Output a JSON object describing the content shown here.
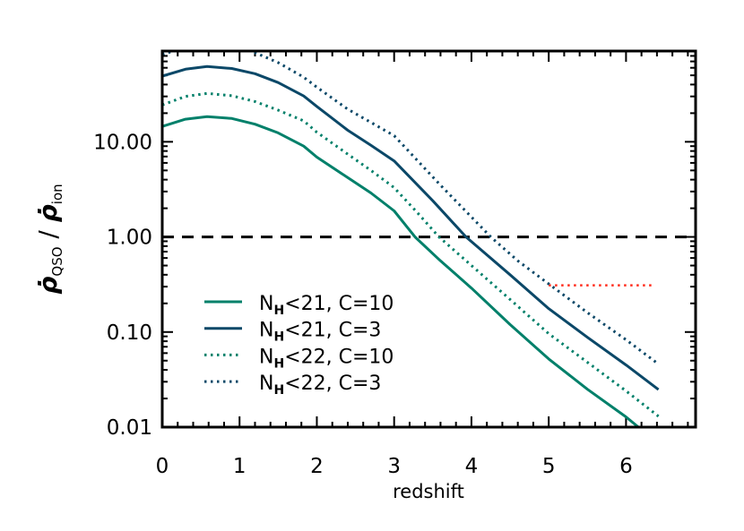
{
  "chart_data": {
    "type": "line",
    "title": "",
    "xlabel": "redshift",
    "ylabel": {
      "num": "ρ̇",
      "num_sub": "QSO",
      "sep": " / ",
      "den": "ρ̇",
      "den_sub": "ion"
    },
    "xlim": [
      0,
      6.9
    ],
    "ylim": [
      0.01,
      90
    ],
    "yscale": "log",
    "grid": false,
    "legend_position": "lower-left",
    "x_ticks": [
      0,
      1,
      2,
      3,
      4,
      5,
      6
    ],
    "x_tick_labels": [
      "0",
      "1",
      "2",
      "3",
      "4",
      "5",
      "6"
    ],
    "y_ticks": [
      0.01,
      0.1,
      1,
      10
    ],
    "y_tick_labels": [
      "0.01",
      "0.10",
      "1.00",
      "10.00"
    ],
    "series": [
      {
        "name": "N_H<21, C=10",
        "label_main": "N",
        "label_sub": "H",
        "label_rest": "<21, C=10",
        "color": "#00806a",
        "style": "solid",
        "x": [
          0,
          0.3,
          0.58,
          0.9,
          1.2,
          1.5,
          1.83,
          2.0,
          2.4,
          2.7,
          3.0,
          3.27,
          3.6,
          4.0,
          4.5,
          5.0,
          5.5,
          6.0,
          6.16
        ],
        "y": [
          14.5,
          17.3,
          18.4,
          17.6,
          15.3,
          12.4,
          9.0,
          6.9,
          4.2,
          2.9,
          1.88,
          1.0,
          0.56,
          0.29,
          0.12,
          0.052,
          0.025,
          0.0128,
          0.01
        ]
      },
      {
        "name": "N_H<21, C=3",
        "label_main": "N",
        "label_sub": "H",
        "label_rest": "<21, C=3",
        "color": "#0b4868",
        "style": "solid",
        "x": [
          0,
          0.3,
          0.58,
          0.9,
          1.2,
          1.5,
          1.83,
          2.0,
          2.4,
          2.7,
          3.0,
          3.5,
          3.93,
          4.5,
          5.0,
          5.5,
          6.0,
          6.42
        ],
        "y": [
          49,
          58,
          62,
          59,
          52,
          42,
          30.3,
          23.5,
          13.2,
          9.2,
          6.3,
          2.4,
          1.0,
          0.4,
          0.176,
          0.088,
          0.045,
          0.0248
        ]
      },
      {
        "name": "N_H<22, C=10",
        "label_main": "N",
        "label_sub": "H",
        "label_rest": "<22, C=10",
        "color": "#00806a",
        "style": "dotted",
        "x": [
          0,
          0.3,
          0.58,
          0.9,
          1.2,
          1.5,
          1.83,
          2.0,
          2.4,
          2.7,
          3.0,
          3.3,
          3.58,
          4.0,
          4.5,
          5.0,
          5.5,
          6.0,
          6.42
        ],
        "y": [
          24.4,
          30.0,
          32.3,
          30.5,
          26.5,
          21.5,
          16.6,
          12.6,
          7.4,
          5.0,
          3.3,
          1.8,
          1.0,
          0.5,
          0.22,
          0.096,
          0.048,
          0.024,
          0.013
        ]
      },
      {
        "name": "N_H<22, C=3",
        "label_main": "N",
        "label_sub": "H",
        "label_rest": "<22, C=3",
        "color": "#0b4868",
        "style": "dotted",
        "x": [
          0,
          0.3,
          0.58,
          0.9,
          1.15,
          1.5,
          1.83,
          2.0,
          2.4,
          2.7,
          3.0,
          3.6,
          4.25,
          4.6,
          5.0,
          5.5,
          6.0,
          6.42
        ],
        "y": [
          83,
          98,
          105,
          99,
          90,
          68,
          47.8,
          37.5,
          22,
          16,
          11.6,
          3.5,
          1.0,
          0.56,
          0.32,
          0.16,
          0.083,
          0.046
        ]
      }
    ],
    "reference_lines": [
      {
        "y": 1.0,
        "x_range": [
          0,
          6.9
        ],
        "color": "#000000",
        "style": "dashed"
      },
      {
        "y": 0.31,
        "x_range": [
          5.0,
          6.38
        ],
        "color": "#ff2a1a",
        "style": "dotted"
      }
    ]
  }
}
